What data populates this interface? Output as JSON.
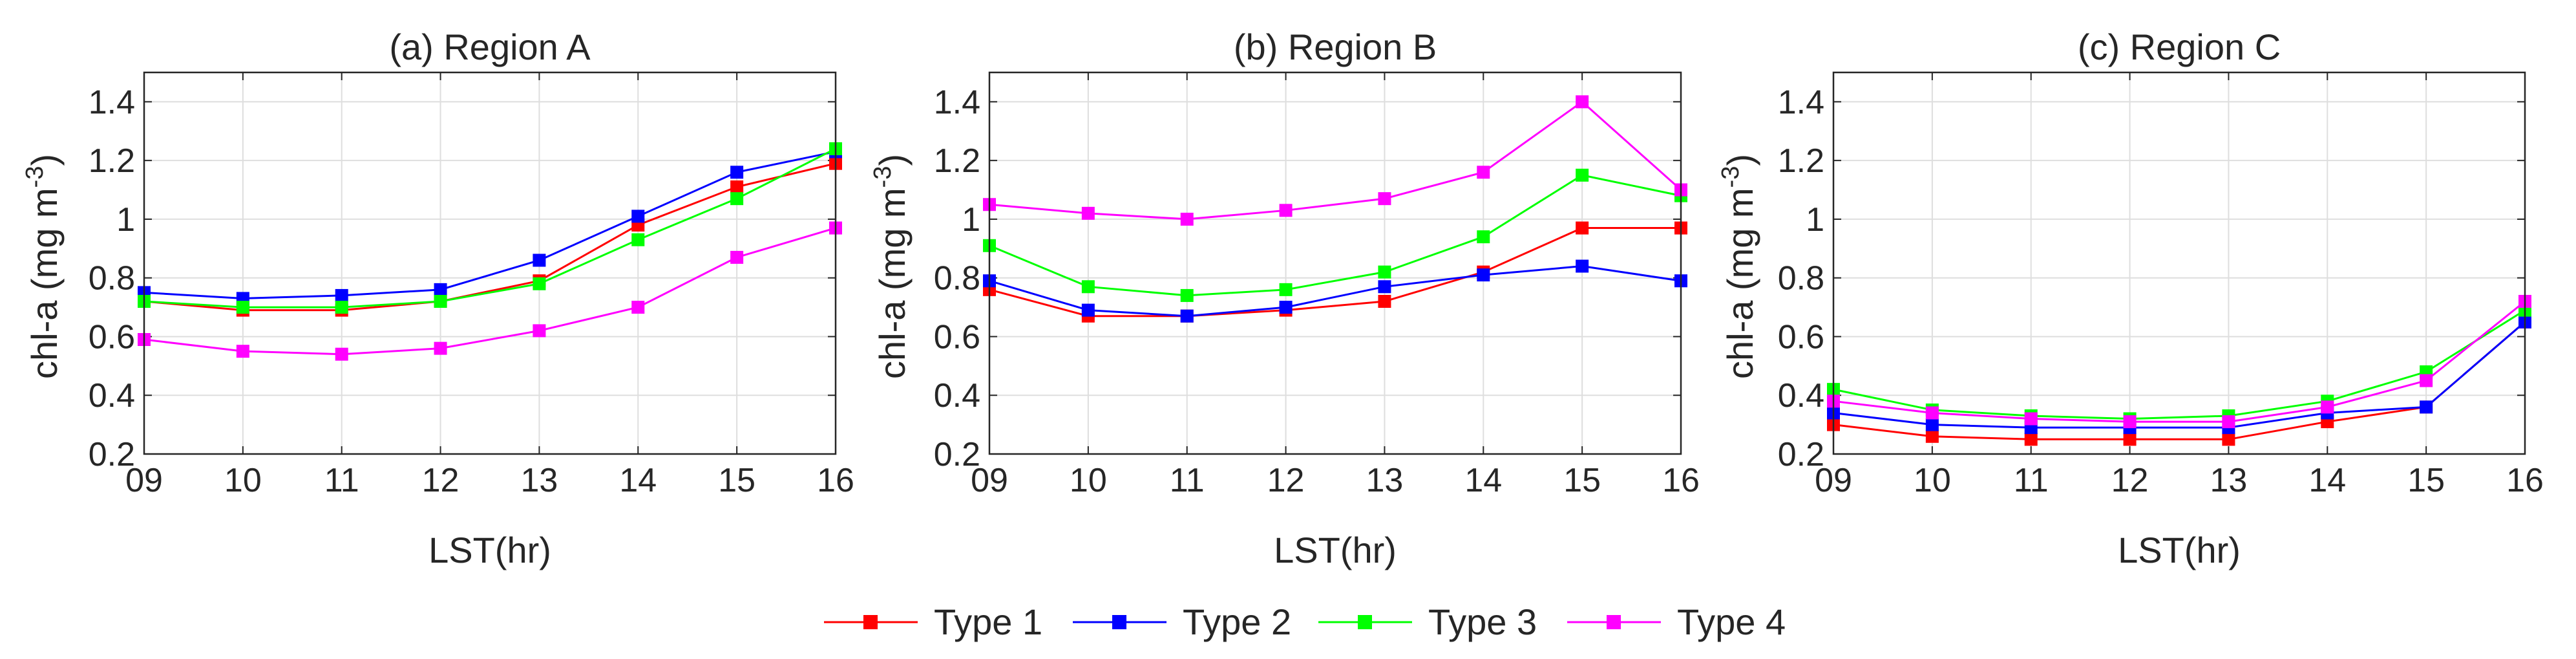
{
  "legend": {
    "entries": [
      {
        "label": "Type 1",
        "color": "#ff0000"
      },
      {
        "label": "Type 2",
        "color": "#0000ff"
      },
      {
        "label": "Type 3",
        "color": "#00ff00"
      },
      {
        "label": "Type 4",
        "color": "#ff00ff"
      }
    ]
  },
  "chart_data": [
    {
      "type": "line",
      "title": "(a) Region A",
      "xlabel": "LST(hr)",
      "ylabel": "chl-a (mg m-3)",
      "ylabel_parts": {
        "main": "chl-a (mg m",
        "sup": "-3",
        "end": ")"
      },
      "categories": [
        "09",
        "10",
        "11",
        "12",
        "13",
        "14",
        "15",
        "16"
      ],
      "ylim": [
        0.2,
        1.5
      ],
      "yticks": [
        "0.2",
        "0.4",
        "0.6",
        "0.8",
        "1",
        "1.2",
        "1.4"
      ],
      "grid": true,
      "series": [
        {
          "name": "Type 1",
          "values": [
            0.72,
            0.69,
            0.69,
            0.72,
            0.79,
            0.98,
            1.11,
            1.19
          ]
        },
        {
          "name": "Type 2",
          "values": [
            0.75,
            0.73,
            0.74,
            0.76,
            0.86,
            1.01,
            1.16,
            1.23
          ]
        },
        {
          "name": "Type 3",
          "values": [
            0.72,
            0.7,
            0.7,
            0.72,
            0.78,
            0.93,
            1.07,
            1.24
          ]
        },
        {
          "name": "Type 4",
          "values": [
            0.59,
            0.55,
            0.54,
            0.56,
            0.62,
            0.7,
            0.87,
            0.97
          ]
        }
      ]
    },
    {
      "type": "line",
      "title": "(b) Region B",
      "xlabel": "LST(hr)",
      "ylabel": "chl-a (mg m-3)",
      "ylabel_parts": {
        "main": "chl-a (mg m",
        "sup": "-3",
        "end": ")"
      },
      "categories": [
        "09",
        "10",
        "11",
        "12",
        "13",
        "14",
        "15",
        "16"
      ],
      "ylim": [
        0.2,
        1.5
      ],
      "yticks": [
        "0.2",
        "0.4",
        "0.6",
        "0.8",
        "1",
        "1.2",
        "1.4"
      ],
      "grid": true,
      "series": [
        {
          "name": "Type 1",
          "values": [
            0.76,
            0.67,
            0.67,
            0.69,
            0.72,
            0.82,
            0.97,
            0.97
          ]
        },
        {
          "name": "Type 2",
          "values": [
            0.79,
            0.69,
            0.67,
            0.7,
            0.77,
            0.81,
            0.84,
            0.79
          ]
        },
        {
          "name": "Type 3",
          "values": [
            0.91,
            0.77,
            0.74,
            0.76,
            0.82,
            0.94,
            1.15,
            1.08
          ]
        },
        {
          "name": "Type 4",
          "values": [
            1.05,
            1.02,
            1.0,
            1.03,
            1.07,
            1.16,
            1.4,
            1.1
          ]
        }
      ]
    },
    {
      "type": "line",
      "title": "(c) Region C",
      "xlabel": "LST(hr)",
      "ylabel": "chl-a (mg m-3)",
      "ylabel_parts": {
        "main": "chl-a (mg m",
        "sup": "-3",
        "end": ")"
      },
      "categories": [
        "09",
        "10",
        "11",
        "12",
        "13",
        "14",
        "15",
        "16"
      ],
      "ylim": [
        0.2,
        1.5
      ],
      "yticks": [
        "0.2",
        "0.4",
        "0.6",
        "0.8",
        "1",
        "1.2",
        "1.4"
      ],
      "grid": true,
      "series": [
        {
          "name": "Type 1",
          "values": [
            0.3,
            0.26,
            0.25,
            0.25,
            0.25,
            0.31,
            0.36,
            0.65
          ]
        },
        {
          "name": "Type 2",
          "values": [
            0.34,
            0.3,
            0.29,
            0.29,
            0.29,
            0.34,
            0.36,
            0.65
          ]
        },
        {
          "name": "Type 3",
          "values": [
            0.42,
            0.35,
            0.33,
            0.32,
            0.33,
            0.38,
            0.48,
            0.69
          ]
        },
        {
          "name": "Type 4",
          "values": [
            0.38,
            0.34,
            0.32,
            0.31,
            0.31,
            0.36,
            0.45,
            0.72
          ]
        }
      ]
    }
  ]
}
